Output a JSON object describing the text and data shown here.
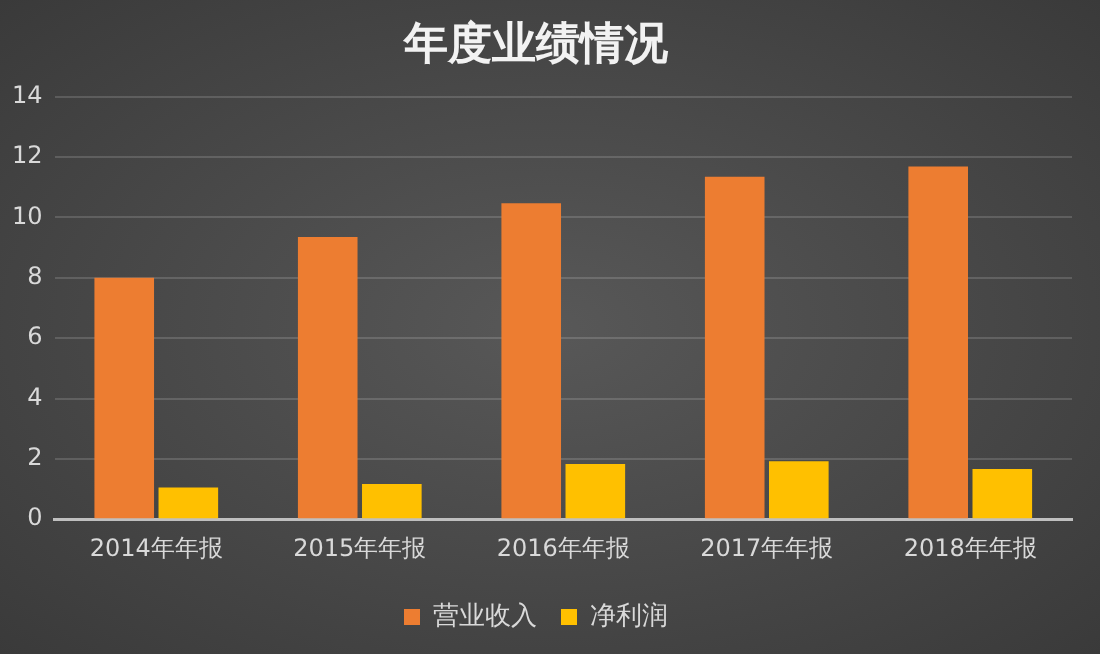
{
  "chart_data": {
    "type": "bar",
    "title": "年度业绩情况",
    "categories": [
      "2014年年报",
      "2015年年报",
      "2016年年报",
      "2017年年报",
      "2018年年报"
    ],
    "series": [
      {
        "name": "营业收入",
        "color": "#ed7d31",
        "values": [
          8.0,
          9.35,
          10.47,
          11.35,
          11.69
        ]
      },
      {
        "name": "净利润",
        "color": "#ffc000",
        "values": [
          1.05,
          1.17,
          1.83,
          1.92,
          1.66
        ]
      }
    ],
    "ylim": [
      0,
      14
    ],
    "yticks": [
      0,
      2,
      4,
      6,
      8,
      10,
      12,
      14
    ],
    "grid": "y",
    "legend": "bottom"
  }
}
